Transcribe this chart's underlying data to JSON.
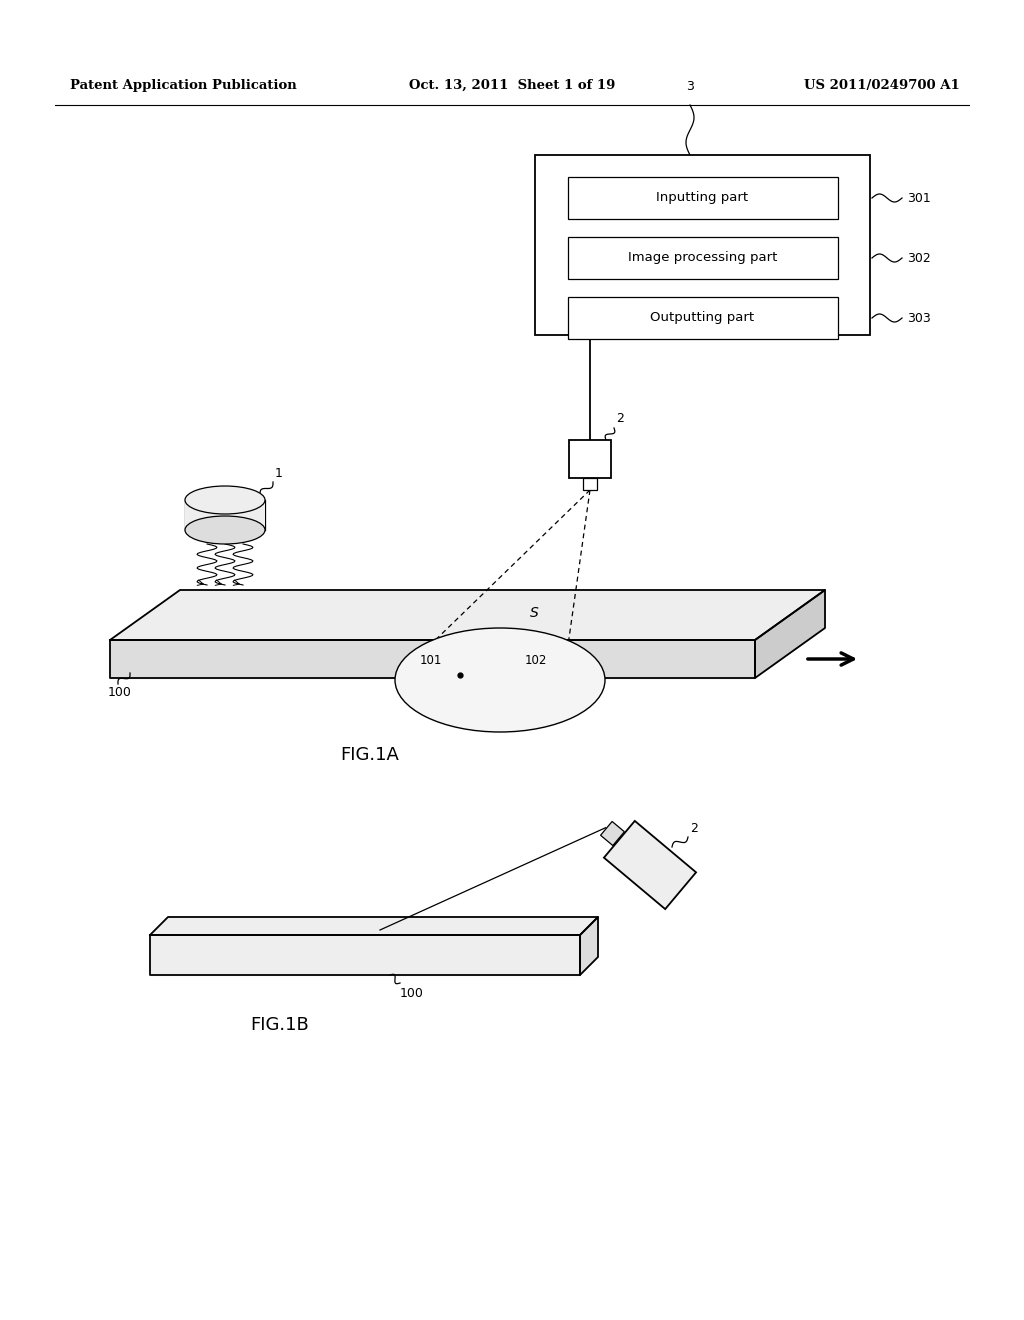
{
  "bg_color": "#ffffff",
  "header_left": "Patent Application Publication",
  "header_center": "Oct. 13, 2011  Sheet 1 of 19",
  "header_right": "US 2011/0249700 A1",
  "fig1a_label": "FIG.1A",
  "fig1b_label": "FIG.1B",
  "box_labels": [
    "Inputting part",
    "Image processing part",
    "Outputting part"
  ],
  "box_refs": [
    "301",
    "302",
    "303"
  ],
  "line_color": "#000000",
  "fill_light": "#eeeeee",
  "fill_mid": "#dddddd",
  "fill_dark": "#cccccc"
}
